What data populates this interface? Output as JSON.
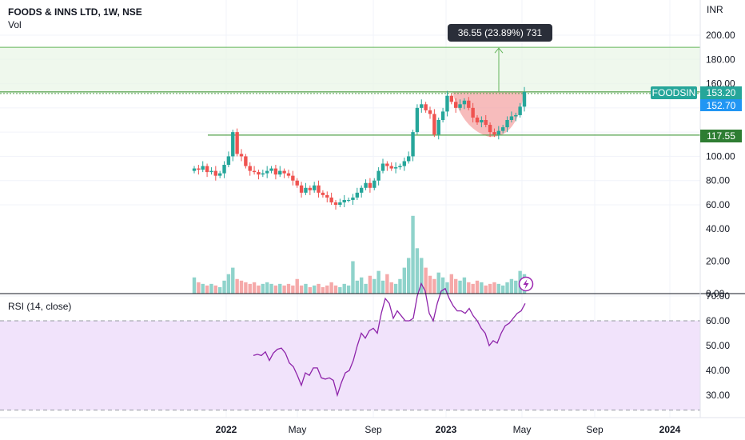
{
  "header": {
    "symbol_title": "FOODS & INNS LTD, 1W, NSE",
    "volume_label": "Vol",
    "rsi_label": "RSI (14, close)",
    "currency": "INR"
  },
  "colors": {
    "up": "#26a69a",
    "down": "#ef5350",
    "vol_up": "#8fd3cb",
    "vol_down": "#f5a9a9",
    "level_line": "#52a04a",
    "target_line": "#63b55a",
    "rsi_line": "#8e24aa",
    "rsi_band": "#f1e3fb",
    "tag_symbol": "#26a69a",
    "tag_price": "#2196f3",
    "tag_level": "#2e7d32",
    "callout_bg": "#2a2e39"
  },
  "annotations": {
    "measure_text": "36.55 (23.89%) 731",
    "symbol_tag": "FOODSIN",
    "last_price": "153.20",
    "prev_price": "152.70",
    "support_level": "117.55",
    "lightning_icon": "lightning-icon"
  },
  "chart_data": [
    {
      "type": "candlestick",
      "title": "FOODS & INNS LTD, 1W, NSE",
      "ylabel": "INR",
      "y_ticks": [
        60,
        80,
        100,
        120,
        140,
        160,
        180,
        200
      ],
      "y_tick_labels": [
        "60.00",
        "80.00",
        "100.00",
        "",
        "",
        "160.00",
        "180.00",
        "200.00"
      ],
      "ylim": [
        35,
        215
      ],
      "x_ticks": [
        "2022",
        "May",
        "Sep",
        "2023",
        "May",
        "Sep",
        "2024"
      ],
      "bold_x_ticks": [
        "2022",
        "2023",
        "2024"
      ],
      "horizontal_levels": [
        117.55,
        153.2,
        190
      ],
      "close": [
        90,
        89,
        92,
        87,
        88,
        84,
        86,
        93,
        100,
        120,
        102,
        100,
        92,
        88,
        87,
        85,
        86,
        88,
        90,
        85,
        88,
        86,
        84,
        80,
        76,
        70,
        74,
        72,
        76,
        70,
        68,
        66,
        62,
        60,
        62,
        64,
        64,
        66,
        70,
        74,
        78,
        74,
        80,
        88,
        94,
        92,
        90,
        91,
        92,
        96,
        100,
        120,
        140,
        143,
        138,
        135,
        118,
        130,
        137,
        150,
        145,
        140,
        143,
        146,
        140,
        132,
        128,
        130,
        126,
        120,
        118,
        121,
        124,
        130,
        133,
        134,
        141,
        153.2
      ]
    },
    {
      "type": "bar",
      "title": "Vol",
      "y_tick_labels": [
        "0.00",
        "20.00",
        "40.00"
      ],
      "values": [
        10,
        7,
        6,
        5,
        6,
        5,
        4,
        8,
        12,
        16,
        9,
        8,
        7,
        6,
        7,
        5,
        6,
        7,
        6,
        5,
        6,
        5,
        6,
        5,
        9,
        5,
        6,
        4,
        5,
        6,
        4,
        5,
        7,
        5,
        4,
        6,
        5,
        20,
        8,
        10,
        6,
        11,
        9,
        14,
        8,
        12,
        7,
        6,
        9,
        16,
        22,
        48,
        28,
        22,
        16,
        11,
        9,
        13,
        10,
        7,
        12,
        9,
        8,
        10,
        7,
        6,
        8,
        7,
        5,
        6,
        7,
        6,
        5,
        7,
        9,
        8,
        14,
        12
      ]
    },
    {
      "type": "line",
      "title": "RSI (14, close)",
      "y_tick_labels": [
        "30.00",
        "40.00",
        "50.00",
        "60.00",
        "70.00"
      ],
      "band": [
        24,
        60
      ],
      "values": [
        46,
        46.5,
        46,
        47.5,
        44,
        47,
        48.5,
        49,
        47,
        43,
        41.5,
        38,
        34,
        39,
        38,
        41,
        41,
        37,
        36.5,
        37,
        36,
        30,
        35,
        39,
        40,
        44,
        50,
        55,
        53,
        56,
        57,
        55,
        63,
        69,
        67,
        61,
        64,
        62,
        60,
        60,
        61,
        70,
        75,
        72,
        63,
        60,
        67,
        72,
        73,
        69,
        66,
        64,
        64,
        63,
        65,
        62,
        60,
        57,
        55,
        50,
        52,
        51,
        55,
        58,
        59,
        61,
        63,
        64,
        67
      ]
    }
  ]
}
